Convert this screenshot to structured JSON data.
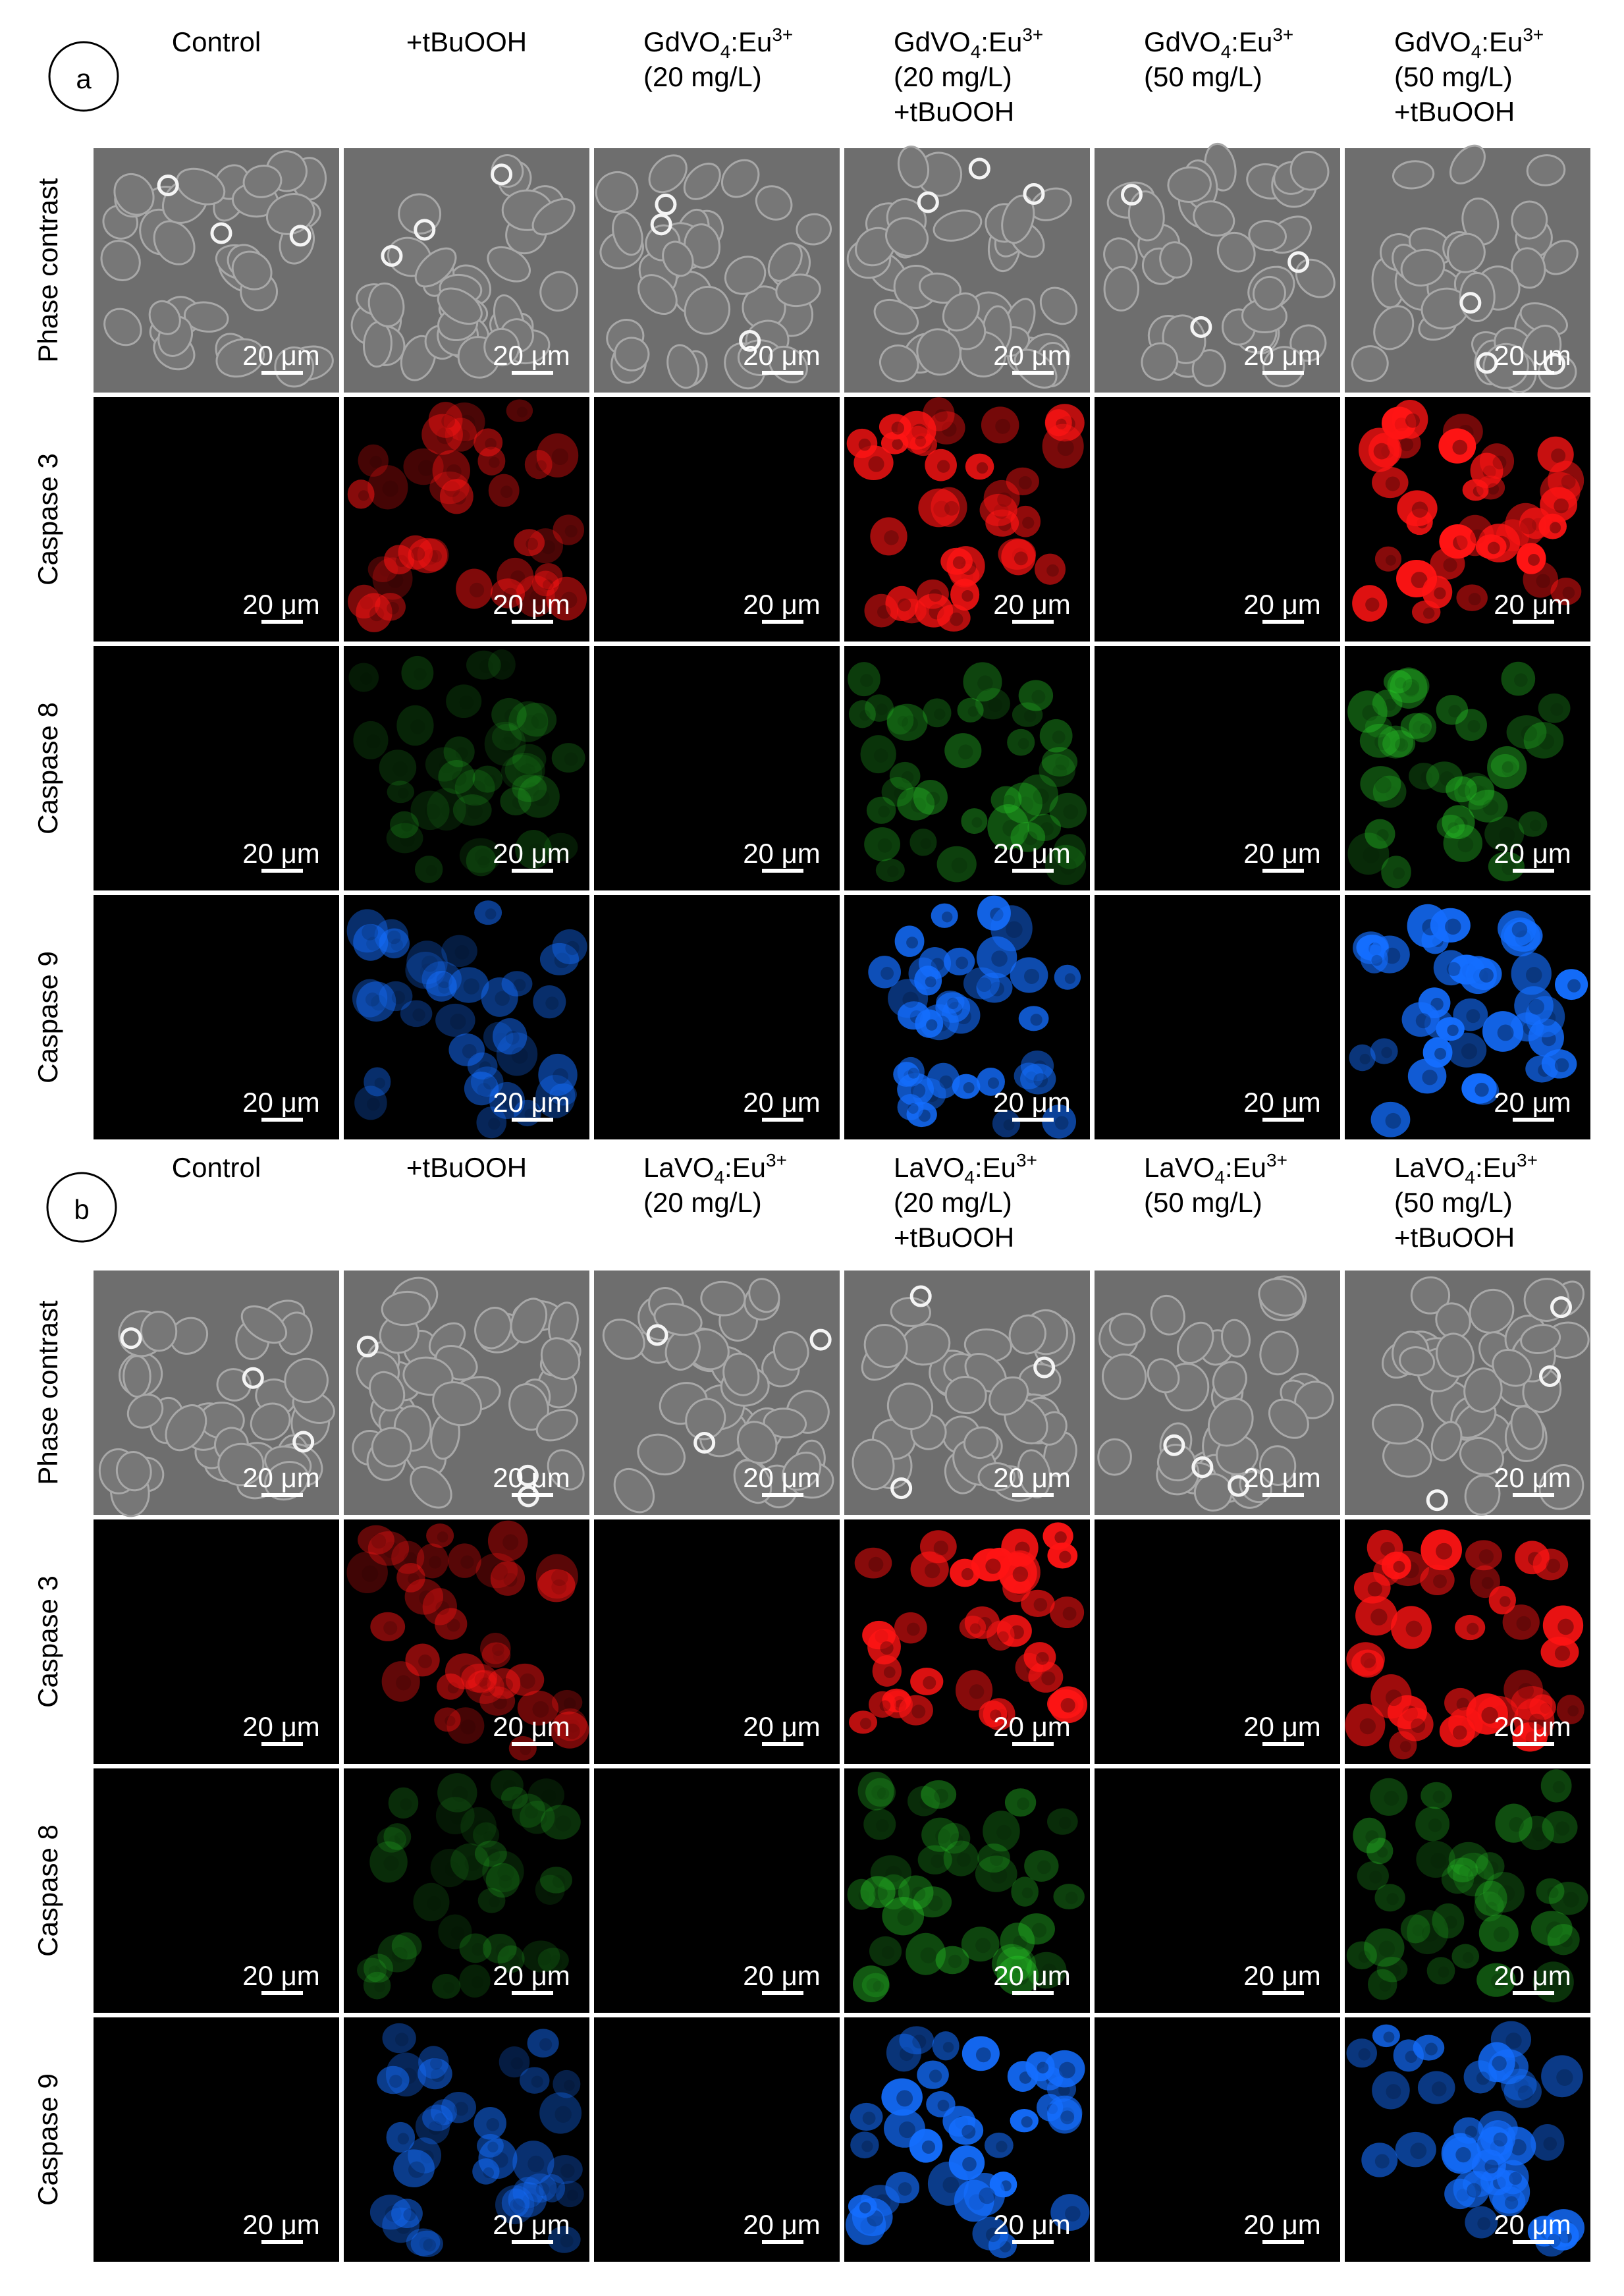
{
  "panels": [
    {
      "label": "a",
      "columns": [
        {
          "lines": [
            "Control"
          ]
        },
        {
          "lines": [
            "+tBuOOH"
          ]
        },
        {
          "formula": {
            "base": "GdVO",
            "sub": "4",
            "ion": ":Eu",
            "sup": "3+"
          },
          "lines": [
            "(20 mg/L)"
          ]
        },
        {
          "formula": {
            "base": "GdVO",
            "sub": "4",
            "ion": ":Eu",
            "sup": "3+"
          },
          "lines": [
            "(20 mg/L)",
            "+tBuOOH"
          ]
        },
        {
          "formula": {
            "base": "GdVO",
            "sub": "4",
            "ion": ":Eu",
            "sup": "3+"
          },
          "lines": [
            "(50 mg/L)"
          ]
        },
        {
          "formula": {
            "base": "GdVO",
            "sub": "4",
            "ion": ":Eu",
            "sup": "3+"
          },
          "lines": [
            "(50 mg/L)",
            "+tBuOOH"
          ]
        }
      ],
      "rows": [
        "Phase contrast",
        "Caspase 3",
        "Caspase 8",
        "Caspase 9"
      ],
      "scale_bar": "20 μm"
    },
    {
      "label": "b",
      "columns": [
        {
          "lines": [
            "Control"
          ]
        },
        {
          "lines": [
            "+tBuOOH"
          ]
        },
        {
          "formula": {
            "base": "LaVO",
            "sub": "4",
            "ion": ":Eu",
            "sup": "3+"
          },
          "lines": [
            "(20 mg/L)"
          ]
        },
        {
          "formula": {
            "base": "LaVO",
            "sub": "4",
            "ion": ":Eu",
            "sup": "3+"
          },
          "lines": [
            "(20 mg/L)",
            "+tBuOOH"
          ]
        },
        {
          "formula": {
            "base": "LaVO",
            "sub": "4",
            "ion": ":Eu",
            "sup": "3+"
          },
          "lines": [
            "(50 mg/L)"
          ]
        },
        {
          "formula": {
            "base": "LaVO",
            "sub": "4",
            "ion": ":Eu",
            "sup": "3+"
          },
          "lines": [
            "(50 mg/L)",
            "+tBuOOH"
          ]
        }
      ],
      "rows": [
        "Phase contrast",
        "Caspase 3",
        "Caspase 8",
        "Caspase 9"
      ],
      "scale_bar": "20 μm"
    }
  ]
}
